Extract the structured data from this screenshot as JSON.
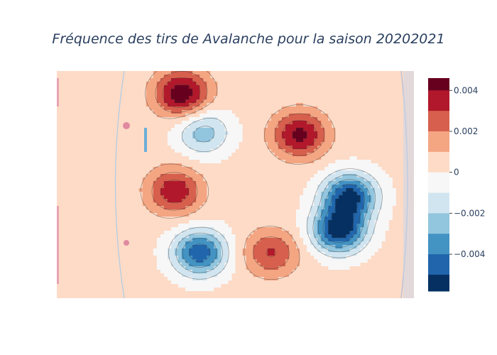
{
  "chart_data": {
    "type": "contour",
    "title": "Fréquence des tirs de Avalanche pour la saison 20202021",
    "xlabel": "",
    "ylabel": "",
    "colorscale": "RdBu",
    "zlim": [
      -0.0058,
      0.0046
    ],
    "colorbar": {
      "ticks": [
        0.004,
        0.002,
        0,
        -0.002,
        -0.004
      ],
      "tick_labels": [
        "0.004",
        "0.002",
        "0",
        "−0.002",
        "−0.004"
      ],
      "levels": [
        {
          "from": 0.004,
          "to": 0.0046,
          "color": "#67001f"
        },
        {
          "from": 0.003,
          "to": 0.004,
          "color": "#b2182b"
        },
        {
          "from": 0.002,
          "to": 0.003,
          "color": "#d6604d"
        },
        {
          "from": 0.001,
          "to": 0.002,
          "color": "#f4a582"
        },
        {
          "from": 0.0,
          "to": 0.001,
          "color": "#fddbc7"
        },
        {
          "from": -0.001,
          "to": 0.0,
          "color": "#f7f7f7"
        },
        {
          "from": -0.002,
          "to": -0.001,
          "color": "#d1e5f0"
        },
        {
          "from": -0.003,
          "to": -0.002,
          "color": "#92c5de"
        },
        {
          "from": -0.004,
          "to": -0.003,
          "color": "#4393c3"
        },
        {
          "from": -0.005,
          "to": -0.004,
          "color": "#2166ac"
        },
        {
          "from": -0.0058,
          "to": -0.005,
          "color": "#053061"
        }
      ]
    },
    "peaks": [
      {
        "x": 0.35,
        "y": 0.9,
        "z": 0.0045
      },
      {
        "x": 0.68,
        "y": 0.72,
        "z": 0.004
      },
      {
        "x": 0.33,
        "y": 0.47,
        "z": 0.0035
      },
      {
        "x": 0.6,
        "y": 0.2,
        "z": 0.0028
      },
      {
        "x": 0.41,
        "y": 0.73,
        "z": -0.0028
      },
      {
        "x": 0.79,
        "y": 0.3,
        "z": -0.0058
      },
      {
        "x": 0.82,
        "y": 0.45,
        "z": -0.0055
      },
      {
        "x": 0.4,
        "y": 0.2,
        "z": -0.005
      }
    ],
    "background_level": 0.0003
  }
}
